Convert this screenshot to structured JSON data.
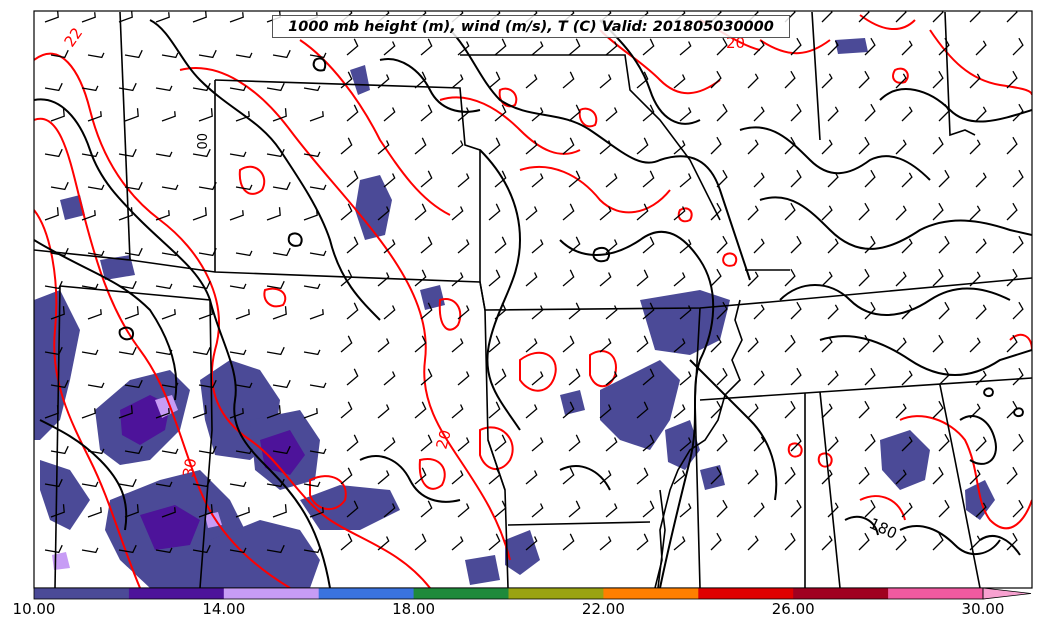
{
  "title": "1000 mb height (m), wind (m/s), T (C) Valid: 201805030000",
  "contour_labels": {
    "temp_22": "22",
    "temp_20_top": "20",
    "temp_30": "30",
    "temp_20_mid": "20",
    "height_180": "180",
    "height_00": "00"
  },
  "colorbar": {
    "ticks": [
      "10.00",
      "14.00",
      "18.00",
      "22.00",
      "26.00",
      "30.00"
    ],
    "colors": [
      "#4b4a97",
      "#4d139a",
      "#c79cf5",
      "#bcb4f1",
      "#2e6fd6",
      "#1f8a3b",
      "#9aa312",
      "#ff7f00",
      "#e00000",
      "#a00020",
      "#f05aa0"
    ],
    "extend": "max"
  },
  "colors": {
    "height_contours": "#000000",
    "temperature_contours": "#ff0000",
    "wind_barbs": "#000000"
  }
}
